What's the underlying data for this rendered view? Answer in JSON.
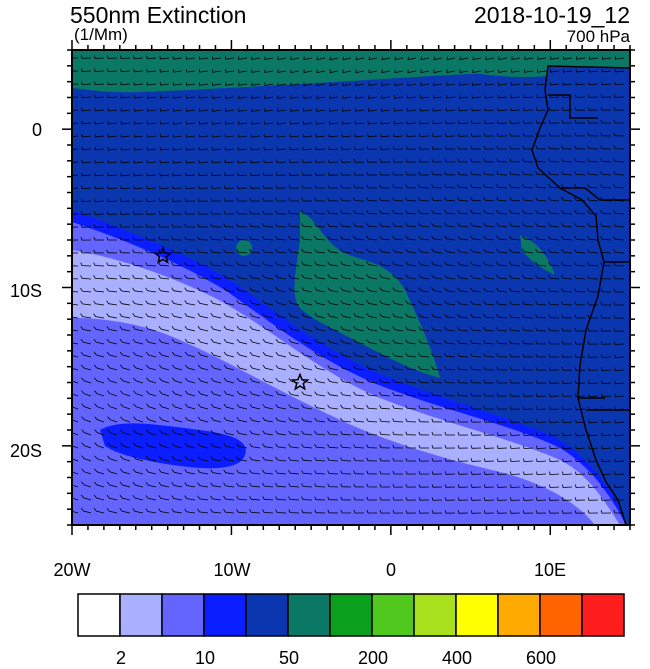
{
  "header": {
    "title": "550nm Extinction",
    "units": "(1/Mm)",
    "datetime": "2018-10-19_12",
    "level": "700 hPa"
  },
  "map": {
    "lat_ticks": [
      "0",
      "10S",
      "20S"
    ],
    "lon_ticks": [
      "20W",
      "10W",
      "0",
      "10E"
    ],
    "lat_range": [
      -25,
      5
    ],
    "lon_range": [
      -20,
      15
    ],
    "markers": [
      {
        "name": "star-marker",
        "lon": -14.3,
        "lat": -8.0
      },
      {
        "name": "star-marker",
        "lon": -5.7,
        "lat": -16.0
      }
    ]
  },
  "colorbar": {
    "colors": [
      "#ffffff",
      "#aab0ff",
      "#6464ff",
      "#0a1eff",
      "#0a37b0",
      "#0a7864",
      "#0aa01e",
      "#50c81e",
      "#aae11e",
      "#ffff00",
      "#ffaa00",
      "#ff6400",
      "#ff1e1e"
    ],
    "labels": [
      "2",
      "10",
      "50",
      "200",
      "400",
      "600"
    ]
  }
}
